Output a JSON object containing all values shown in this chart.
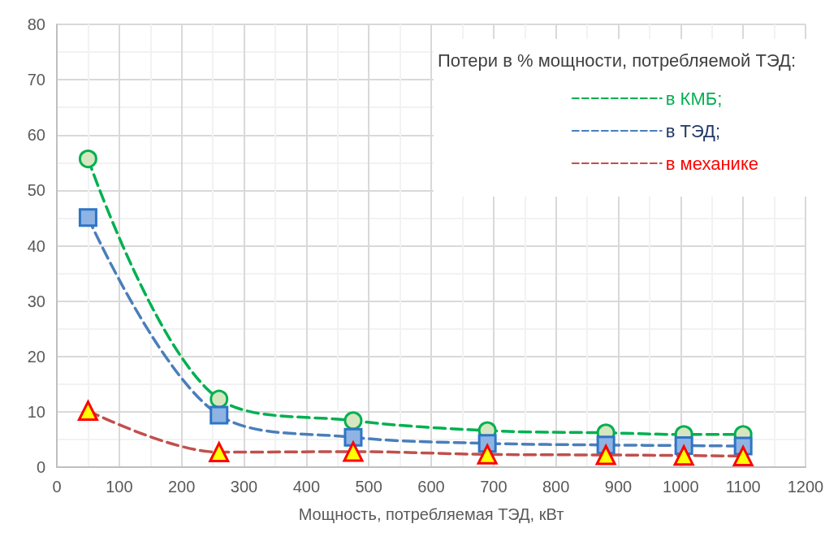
{
  "chart_data": {
    "type": "line",
    "xlabel": "Мощность, потребляемая ТЭД, кВт",
    "legend_title": "Потери в % мощности, потребляемой ТЭД:",
    "x": [
      50,
      260,
      475,
      690,
      880,
      1005,
      1100
    ],
    "series": [
      {
        "name": "в КМБ;",
        "color": "#00b050",
        "marker": "circle",
        "values": [
          55.7,
          12.3,
          8.4,
          6.6,
          6.2,
          5.9,
          5.9
        ]
      },
      {
        "name": "в ТЭД;",
        "color": "#4a7ebb",
        "marker": "square",
        "values": [
          45.1,
          9.4,
          5.4,
          4.3,
          4.0,
          3.9,
          3.8
        ]
      },
      {
        "name": "в механике",
        "color": "#c0504d",
        "marker": "triangle",
        "values": [
          10.2,
          2.7,
          2.8,
          2.3,
          2.2,
          2.1,
          2.0
        ]
      }
    ],
    "xlim": [
      0,
      1200
    ],
    "xticks": [
      0,
      100,
      200,
      300,
      400,
      500,
      600,
      700,
      800,
      900,
      1000,
      1100,
      1200
    ],
    "ylim": [
      0,
      80
    ],
    "yticks": [
      0,
      10,
      20,
      30,
      40,
      50,
      60,
      70,
      80
    ],
    "grid": true,
    "legend": "top right",
    "line_style": "dashed"
  }
}
